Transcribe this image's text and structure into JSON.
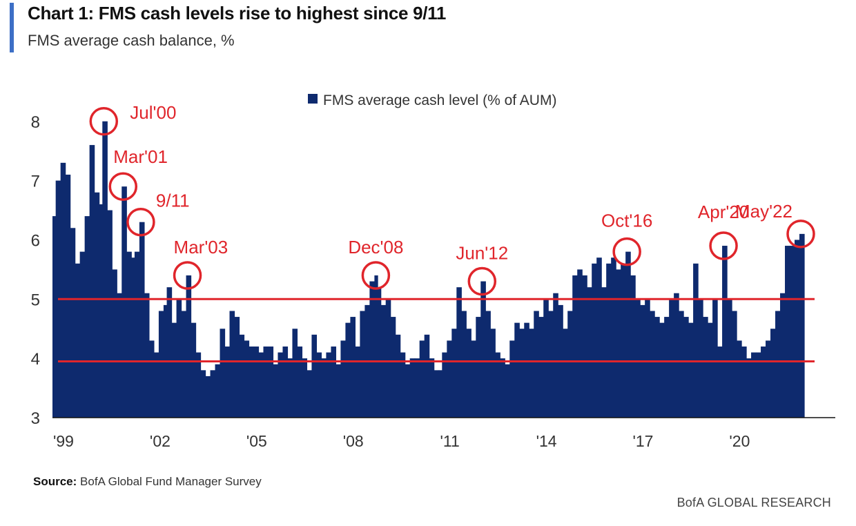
{
  "header": {
    "title": "Chart 1: FMS cash levels rise to highest since 9/11",
    "subtitle": "FMS average cash balance, %"
  },
  "footer": {
    "source_label": "Source:",
    "source_text": "BofA Global Fund Manager Survey",
    "brand": "BofA GLOBAL RESEARCH"
  },
  "colors": {
    "accent": "#3d6fc6",
    "bar": "#0e2a6e",
    "annotation": "#e0252b"
  },
  "chart_data": {
    "type": "bar",
    "title": "",
    "xlabel": "",
    "ylabel": "",
    "legend": {
      "label": "FMS average cash level (% of AUM)",
      "placement": "top-center"
    },
    "ylim": [
      3,
      8.3
    ],
    "yticks": [
      3,
      4,
      5,
      6,
      7,
      8
    ],
    "xlim": [
      1999.0,
      2022.5
    ],
    "xticks": [
      {
        "x": 1999.0,
        "label": "'99"
      },
      {
        "x": 2002.0,
        "label": "'02"
      },
      {
        "x": 2005.0,
        "label": "'05"
      },
      {
        "x": 2008.0,
        "label": "'08"
      },
      {
        "x": 2011.0,
        "label": "'11"
      },
      {
        "x": 2014.0,
        "label": "'14"
      },
      {
        "x": 2017.0,
        "label": "'17"
      },
      {
        "x": 2020.0,
        "label": "'20"
      }
    ],
    "reference_lines": [
      5.0,
      3.95
    ],
    "series": [
      {
        "name": "FMS average cash level (% of AUM)",
        "points": [
          [
            1999.0,
            6.4
          ],
          [
            1999.1,
            7.0
          ],
          [
            1999.25,
            7.3
          ],
          [
            1999.4,
            7.1
          ],
          [
            1999.55,
            6.2
          ],
          [
            1999.7,
            5.6
          ],
          [
            1999.85,
            5.8
          ],
          [
            2000.0,
            6.4
          ],
          [
            2000.15,
            7.6
          ],
          [
            2000.3,
            6.8
          ],
          [
            2000.45,
            6.6
          ],
          [
            2000.55,
            8.0
          ],
          [
            2000.7,
            6.5
          ],
          [
            2000.85,
            5.5
          ],
          [
            2001.0,
            5.1
          ],
          [
            2001.15,
            6.9
          ],
          [
            2001.3,
            5.8
          ],
          [
            2001.45,
            5.7
          ],
          [
            2001.55,
            5.8
          ],
          [
            2001.7,
            6.3
          ],
          [
            2001.85,
            5.1
          ],
          [
            2002.0,
            4.3
          ],
          [
            2002.15,
            4.1
          ],
          [
            2002.3,
            4.8
          ],
          [
            2002.45,
            4.9
          ],
          [
            2002.55,
            5.2
          ],
          [
            2002.7,
            4.6
          ],
          [
            2002.85,
            5.0
          ],
          [
            2003.0,
            4.8
          ],
          [
            2003.15,
            5.4
          ],
          [
            2003.3,
            4.6
          ],
          [
            2003.45,
            4.1
          ],
          [
            2003.6,
            3.8
          ],
          [
            2003.75,
            3.7
          ],
          [
            2003.9,
            3.8
          ],
          [
            2004.05,
            3.9
          ],
          [
            2004.2,
            4.5
          ],
          [
            2004.35,
            4.2
          ],
          [
            2004.5,
            4.8
          ],
          [
            2004.65,
            4.7
          ],
          [
            2004.8,
            4.4
          ],
          [
            2004.95,
            4.3
          ],
          [
            2005.1,
            4.2
          ],
          [
            2005.25,
            4.2
          ],
          [
            2005.4,
            4.1
          ],
          [
            2005.55,
            4.2
          ],
          [
            2005.7,
            4.2
          ],
          [
            2005.85,
            3.9
          ],
          [
            2006.0,
            4.1
          ],
          [
            2006.15,
            4.2
          ],
          [
            2006.3,
            4.0
          ],
          [
            2006.45,
            4.5
          ],
          [
            2006.6,
            4.2
          ],
          [
            2006.75,
            4.0
          ],
          [
            2006.9,
            3.8
          ],
          [
            2007.05,
            4.4
          ],
          [
            2007.2,
            4.1
          ],
          [
            2007.35,
            4.0
          ],
          [
            2007.5,
            4.1
          ],
          [
            2007.65,
            4.2
          ],
          [
            2007.8,
            3.9
          ],
          [
            2007.95,
            4.3
          ],
          [
            2008.1,
            4.6
          ],
          [
            2008.25,
            4.7
          ],
          [
            2008.4,
            4.2
          ],
          [
            2008.55,
            4.8
          ],
          [
            2008.7,
            4.9
          ],
          [
            2008.85,
            5.3
          ],
          [
            2009.0,
            5.4
          ],
          [
            2009.1,
            5.2
          ],
          [
            2009.2,
            4.9
          ],
          [
            2009.35,
            5.0
          ],
          [
            2009.5,
            4.7
          ],
          [
            2009.65,
            4.4
          ],
          [
            2009.8,
            4.1
          ],
          [
            2009.95,
            3.9
          ],
          [
            2010.1,
            4.0
          ],
          [
            2010.25,
            4.0
          ],
          [
            2010.4,
            4.3
          ],
          [
            2010.55,
            4.4
          ],
          [
            2010.7,
            4.0
          ],
          [
            2010.85,
            3.8
          ],
          [
            2011.0,
            3.8
          ],
          [
            2011.1,
            4.1
          ],
          [
            2011.25,
            4.3
          ],
          [
            2011.4,
            4.5
          ],
          [
            2011.55,
            5.2
          ],
          [
            2011.7,
            4.8
          ],
          [
            2011.85,
            4.5
          ],
          [
            2012.0,
            4.3
          ],
          [
            2012.15,
            4.7
          ],
          [
            2012.3,
            5.3
          ],
          [
            2012.45,
            4.8
          ],
          [
            2012.6,
            4.5
          ],
          [
            2012.75,
            4.1
          ],
          [
            2012.9,
            4.0
          ],
          [
            2013.05,
            3.9
          ],
          [
            2013.2,
            4.3
          ],
          [
            2013.35,
            4.6
          ],
          [
            2013.5,
            4.5
          ],
          [
            2013.65,
            4.6
          ],
          [
            2013.8,
            4.5
          ],
          [
            2013.95,
            4.8
          ],
          [
            2014.1,
            4.7
          ],
          [
            2014.25,
            5.0
          ],
          [
            2014.4,
            4.8
          ],
          [
            2014.55,
            5.1
          ],
          [
            2014.7,
            4.9
          ],
          [
            2014.85,
            4.5
          ],
          [
            2015.0,
            4.8
          ],
          [
            2015.15,
            5.4
          ],
          [
            2015.3,
            5.5
          ],
          [
            2015.45,
            5.4
          ],
          [
            2015.6,
            5.2
          ],
          [
            2015.75,
            5.6
          ],
          [
            2015.9,
            5.7
          ],
          [
            2016.05,
            5.2
          ],
          [
            2016.2,
            5.6
          ],
          [
            2016.35,
            5.7
          ],
          [
            2016.5,
            5.5
          ],
          [
            2016.65,
            5.6
          ],
          [
            2016.8,
            5.8
          ],
          [
            2016.95,
            5.4
          ],
          [
            2017.1,
            5.0
          ],
          [
            2017.25,
            4.9
          ],
          [
            2017.4,
            5.0
          ],
          [
            2017.55,
            4.8
          ],
          [
            2017.7,
            4.7
          ],
          [
            2017.85,
            4.6
          ],
          [
            2018.0,
            4.7
          ],
          [
            2018.15,
            5.0
          ],
          [
            2018.3,
            5.1
          ],
          [
            2018.45,
            4.8
          ],
          [
            2018.6,
            4.7
          ],
          [
            2018.75,
            4.6
          ],
          [
            2018.9,
            5.6
          ],
          [
            2019.05,
            5.0
          ],
          [
            2019.2,
            4.7
          ],
          [
            2019.35,
            4.6
          ],
          [
            2019.5,
            5.0
          ],
          [
            2019.65,
            4.2
          ],
          [
            2019.8,
            5.9
          ],
          [
            2019.95,
            5.0
          ],
          [
            2020.1,
            4.8
          ],
          [
            2020.25,
            4.3
          ],
          [
            2020.4,
            4.2
          ],
          [
            2020.55,
            4.0
          ],
          [
            2020.7,
            4.1
          ],
          [
            2020.85,
            4.1
          ],
          [
            2021.0,
            4.2
          ],
          [
            2021.15,
            4.3
          ],
          [
            2021.3,
            4.5
          ],
          [
            2021.45,
            4.8
          ],
          [
            2021.6,
            5.1
          ],
          [
            2021.75,
            5.9
          ],
          [
            2021.9,
            5.9
          ],
          [
            2022.05,
            6.0
          ],
          [
            2022.2,
            6.1
          ]
        ]
      }
    ],
    "annotations": [
      {
        "label": "Jul'00",
        "x": 2000.55,
        "y": 8.0
      },
      {
        "label": "Mar'01",
        "x": 2001.15,
        "y": 6.9
      },
      {
        "label": "9/11",
        "x": 2001.7,
        "y": 6.3
      },
      {
        "label": "Mar'03",
        "x": 2003.15,
        "y": 5.4
      },
      {
        "label": "Dec'08",
        "x": 2009.0,
        "y": 5.4
      },
      {
        "label": "Jun'12",
        "x": 2012.3,
        "y": 5.3
      },
      {
        "label": "Oct'16",
        "x": 2016.8,
        "y": 5.8
      },
      {
        "label": "Apr'20",
        "x": 2019.8,
        "y": 5.9
      },
      {
        "label": "May'22",
        "x": 2022.2,
        "y": 6.1
      }
    ]
  }
}
